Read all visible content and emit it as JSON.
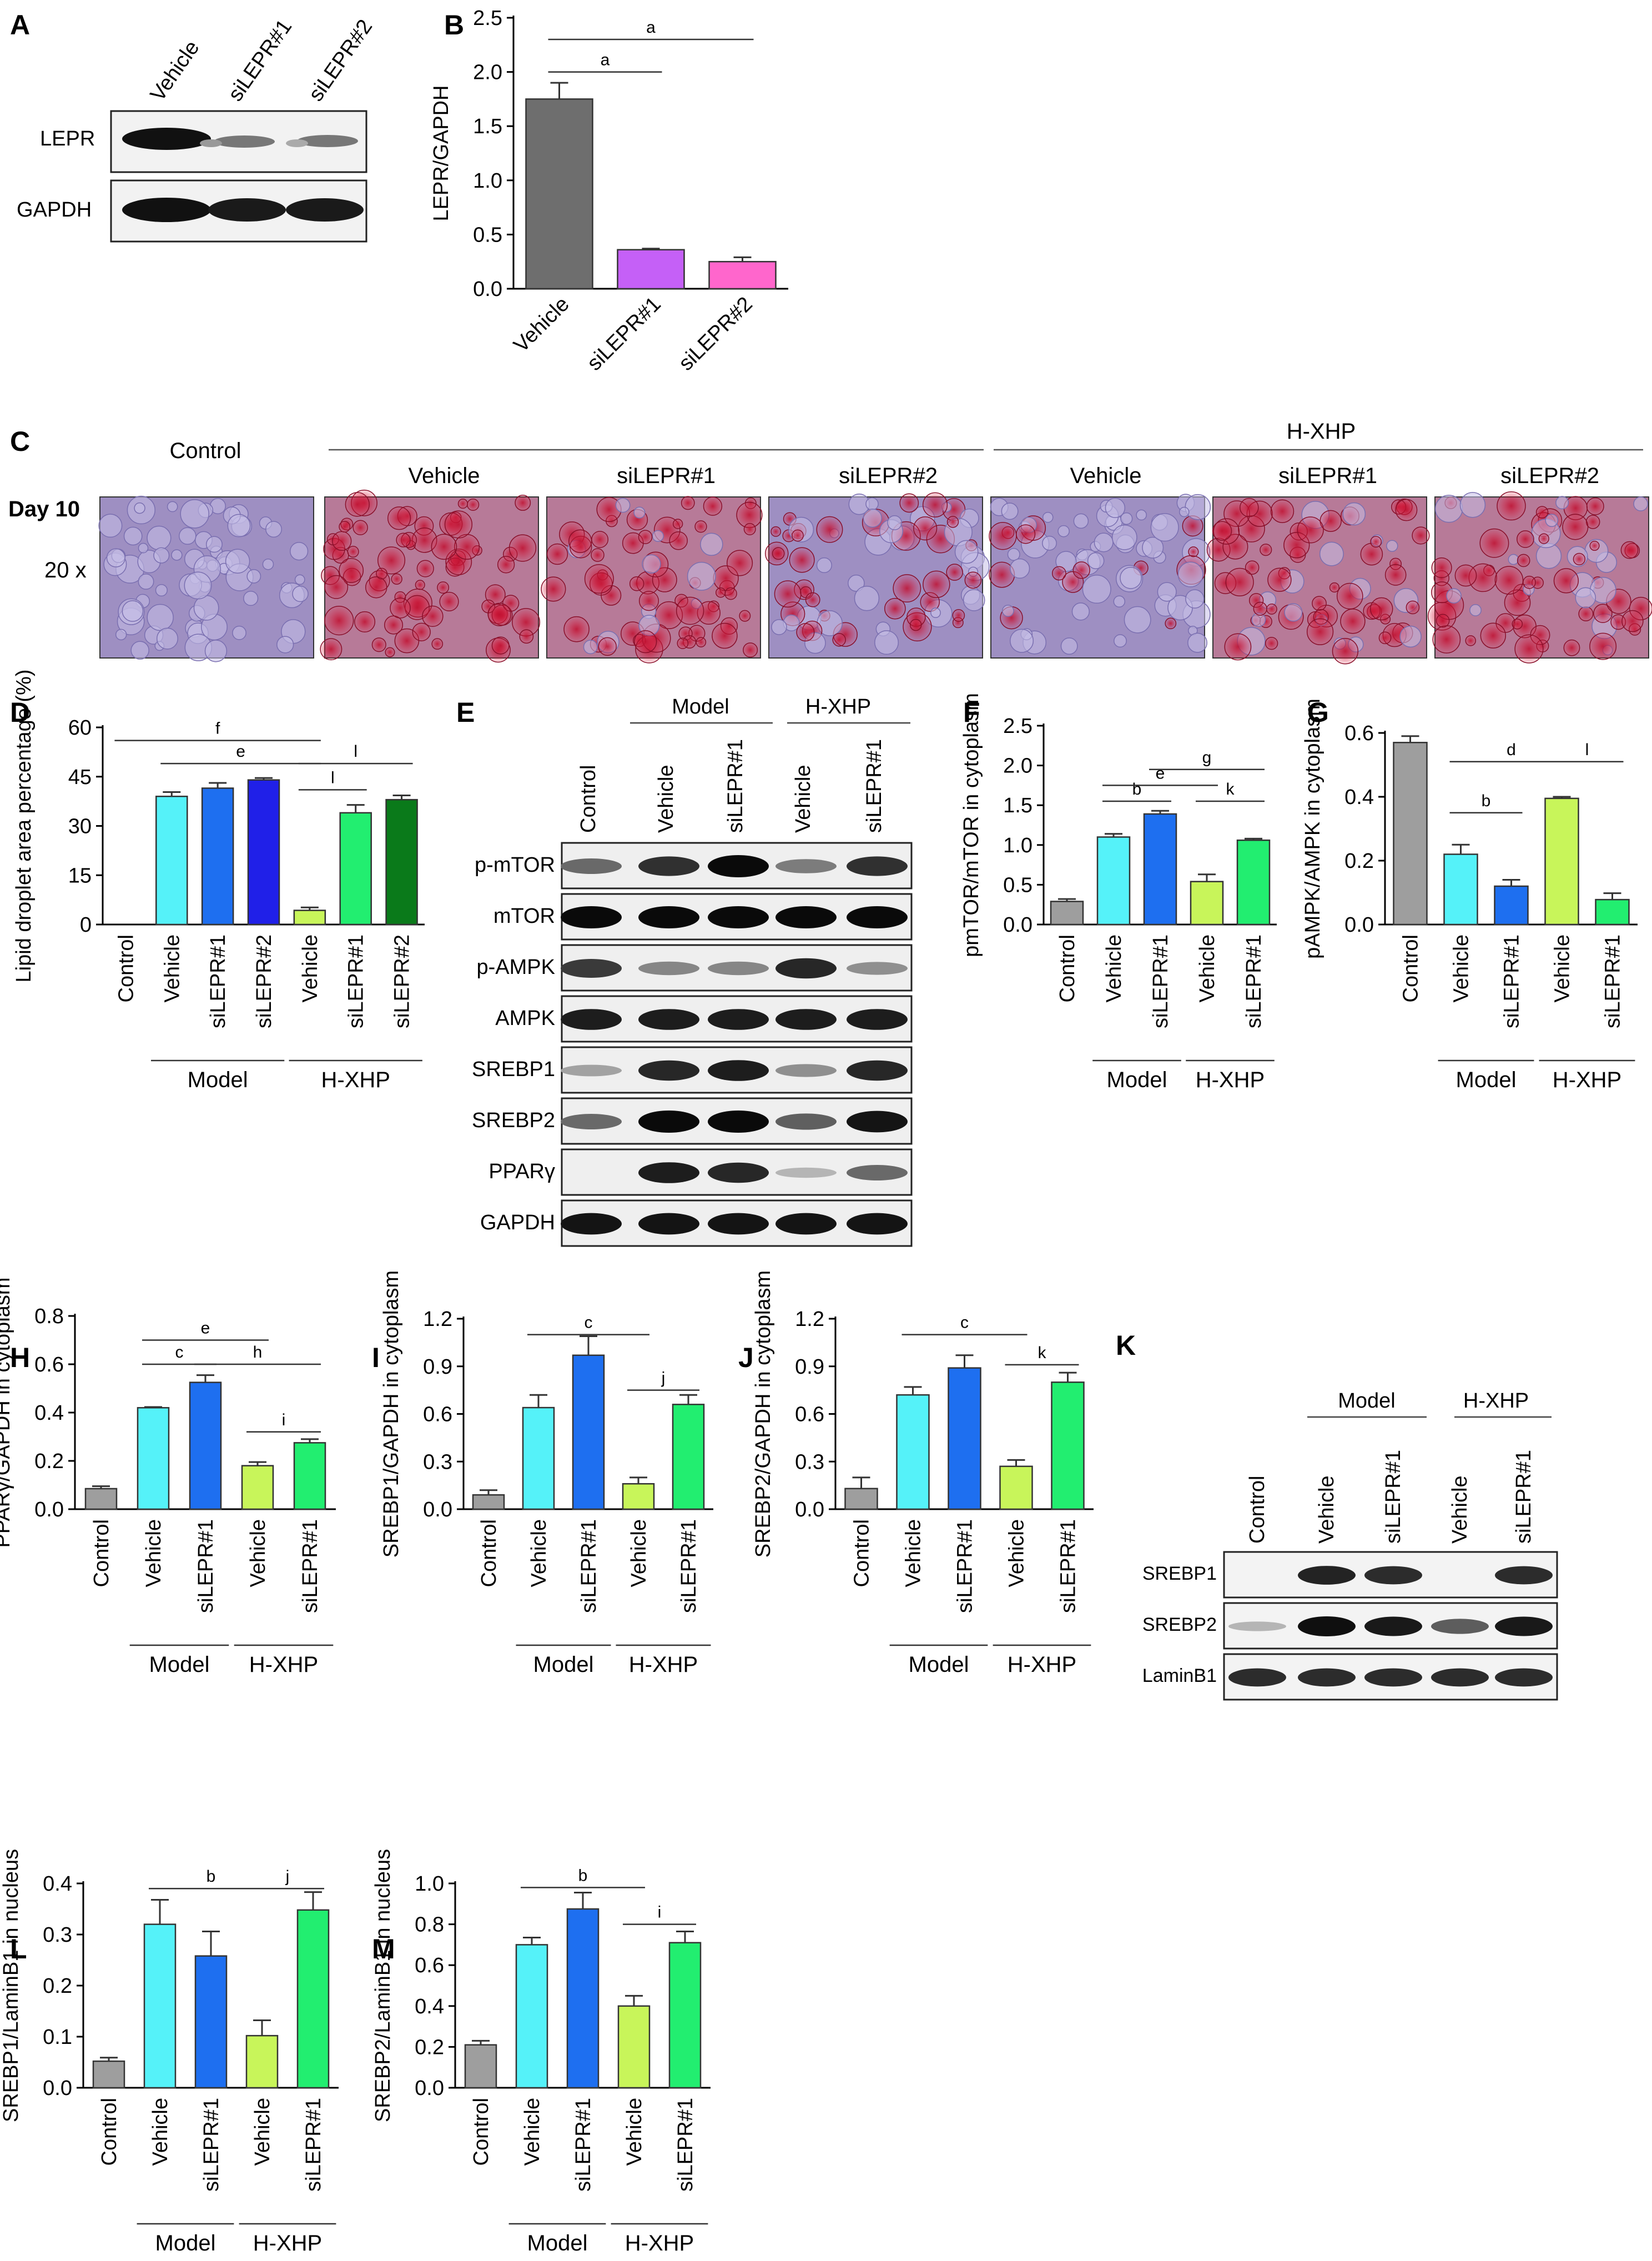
{
  "colors": {
    "control": "#9e9e9e",
    "vehicle": "#55f2f9",
    "si1": "#1e6ff0",
    "si1_b": "#c560f7",
    "si2": "#2020e8",
    "si2_b": "#ff66cc",
    "hxhp_vehicle": "#c8f55a",
    "hxhp_si1": "#22ee70",
    "hxhp_si2": "#0a7a1a",
    "model_b_vehicle": "#6e6e6e"
  },
  "panels": {
    "A": {
      "letter": "A",
      "lanes": [
        "Vehicle",
        "siLEPR#1",
        "siLEPR#2"
      ],
      "rows": [
        "LEPR",
        "GAPDH"
      ]
    },
    "C": {
      "letter": "C",
      "control": "Control",
      "group": "H-XHP",
      "cols": [
        "Vehicle",
        "siLEPR#1",
        "siLEPR#2",
        "Vehicle",
        "siLEPR#1",
        "siLEPR#2"
      ],
      "day": "Day 10",
      "mag": "20 x"
    },
    "E": {
      "letter": "E",
      "groups": [
        "Model",
        "H-XHP"
      ],
      "lanes": [
        "Control",
        "Vehicle",
        "siLEPR#1",
        "Vehicle",
        "siLEPR#1"
      ],
      "rows": [
        "p-mTOR",
        "mTOR",
        "p-AMPK",
        "AMPK",
        "SREBP1",
        "SREBP2",
        "PPARγ",
        "GAPDH"
      ]
    },
    "K": {
      "letter": "K",
      "groups": [
        "Model",
        "H-XHP"
      ],
      "lanes": [
        "Control",
        "Vehicle",
        "siLEPR#1",
        "Vehicle",
        "siLEPR#1"
      ],
      "rows": [
        "SREBP1",
        "SREBP2",
        "LaminB1"
      ]
    }
  },
  "chart_data": [
    {
      "id": "B",
      "letter": "B",
      "type": "bar",
      "categories": [
        "Vehicle",
        "siLEPR#1",
        "siLEPR#2"
      ],
      "values": [
        1.75,
        0.36,
        0.25
      ],
      "errors": [
        0.15,
        0.01,
        0.04
      ],
      "ylabel": "LEPR/GAPDH",
      "ylim": [
        0,
        2.5
      ],
      "yticks": [
        "0.0",
        "0.5",
        "1.0",
        "1.5",
        "2.0",
        "2.5"
      ],
      "sig": [
        {
          "from": 0,
          "to": 1,
          "label": "a",
          "y": 2.0
        },
        {
          "from": 0,
          "to": 2,
          "label": "a",
          "y": 2.3
        }
      ],
      "groups": []
    },
    {
      "id": "D",
      "letter": "D",
      "type": "bar",
      "categories": [
        "Control",
        "Vehicle",
        "siLEPR#1",
        "siLEPR#2",
        "Vehicle",
        "siLEPR#1",
        "siLEPR#2"
      ],
      "values": [
        0,
        39,
        41.5,
        44,
        4.3,
        34,
        38
      ],
      "errors": [
        0,
        1.3,
        1.6,
        0.6,
        0.9,
        2.4,
        1.3
      ],
      "ylabel": "Lipid droplet area percentage (%)",
      "ylim": [
        0,
        60
      ],
      "yticks": [
        "0",
        "15",
        "30",
        "45",
        "60"
      ],
      "sig": [
        {
          "from": 1,
          "to": 4,
          "label": "e",
          "y": 49
        },
        {
          "from": 0,
          "to": 4,
          "label": "f",
          "y": 56
        },
        {
          "from": 4,
          "to": 5,
          "label": "l",
          "y": 41
        },
        {
          "from": 4,
          "to": 6,
          "label": "l",
          "y": 49
        }
      ],
      "groups": [
        {
          "label": "Model",
          "from": 1,
          "to": 3
        },
        {
          "label": "H-XHP",
          "from": 4,
          "to": 6
        }
      ]
    },
    {
      "id": "F",
      "letter": "F",
      "type": "bar",
      "categories": [
        "Control",
        "Vehicle",
        "siLEPR#1",
        "Vehicle",
        "siLEPR#1"
      ],
      "values": [
        0.29,
        1.1,
        1.39,
        0.54,
        1.06
      ],
      "errors": [
        0.03,
        0.04,
        0.04,
        0.09,
        0.02
      ],
      "ylabel": "pmTOR/mTOR in cytoplasm",
      "ylim": [
        0,
        2.5
      ],
      "yticks": [
        "0.0",
        "0.5",
        "1.0",
        "1.5",
        "2.0",
        "2.5"
      ],
      "sig": [
        {
          "from": 1,
          "to": 2,
          "label": "b",
          "y": 1.55
        },
        {
          "from": 1,
          "to": 3,
          "label": "e",
          "y": 1.75
        },
        {
          "from": 2,
          "to": 4,
          "label": "g",
          "y": 1.95
        },
        {
          "from": 3,
          "to": 4,
          "label": "k",
          "y": 1.55
        }
      ],
      "groups": [
        {
          "label": "Model",
          "from": 1,
          "to": 2
        },
        {
          "label": "H-XHP",
          "from": 3,
          "to": 4
        }
      ]
    },
    {
      "id": "G",
      "letter": "G",
      "type": "bar",
      "categories": [
        "Control",
        "Vehicle",
        "siLEPR#1",
        "Vehicle",
        "siLEPR#1"
      ],
      "values": [
        0.57,
        0.22,
        0.12,
        0.395,
        0.078
      ],
      "errors": [
        0.02,
        0.03,
        0.02,
        0.005,
        0.02
      ],
      "ylabel": "pAMPK/AMPK in cytoplasm",
      "ylim": [
        0,
        0.6
      ],
      "yticks": [
        "0.0",
        "0.2",
        "0.4",
        "0.6"
      ],
      "sig": [
        {
          "from": 1,
          "to": 2,
          "label": "b",
          "y": 0.35
        },
        {
          "from": 1,
          "to": 3,
          "label": "d",
          "y": 0.51
        },
        {
          "from": 3,
          "to": 4,
          "label": "l",
          "y": 0.51
        }
      ],
      "groups": [
        {
          "label": "Model",
          "from": 1,
          "to": 2
        },
        {
          "label": "H-XHP",
          "from": 3,
          "to": 4
        }
      ]
    },
    {
      "id": "H",
      "letter": "H",
      "type": "bar",
      "categories": [
        "Control",
        "Vehicle",
        "siLEPR#1",
        "Vehicle",
        "siLEPR#1"
      ],
      "values": [
        0.085,
        0.42,
        0.525,
        0.18,
        0.275
      ],
      "errors": [
        0.01,
        0.003,
        0.03,
        0.015,
        0.015
      ],
      "ylabel": "PPARγ/GAPDH in cytoplasm",
      "ylim": [
        0,
        0.8
      ],
      "yticks": [
        "0.0",
        "0.2",
        "0.4",
        "0.6",
        "0.8"
      ],
      "sig": [
        {
          "from": 1,
          "to": 2,
          "label": "c",
          "y": 0.6
        },
        {
          "from": 1,
          "to": 3,
          "label": "e",
          "y": 0.7
        },
        {
          "from": 2,
          "to": 4,
          "label": "h",
          "y": 0.6
        },
        {
          "from": 3,
          "to": 4,
          "label": "i",
          "y": 0.32
        }
      ],
      "groups": [
        {
          "label": "Model",
          "from": 1,
          "to": 2
        },
        {
          "label": "H-XHP",
          "from": 3,
          "to": 4
        }
      ]
    },
    {
      "id": "I",
      "letter": "I",
      "type": "bar",
      "categories": [
        "Control",
        "Vehicle",
        "siLEPR#1",
        "Vehicle",
        "siLEPR#1"
      ],
      "values": [
        0.09,
        0.64,
        0.97,
        0.16,
        0.66
      ],
      "errors": [
        0.03,
        0.08,
        0.12,
        0.04,
        0.06
      ],
      "ylabel": "SREBP1/GAPDH in cytoplasm",
      "ylim": [
        0,
        1.2
      ],
      "yticks": [
        "0.0",
        "0.3",
        "0.6",
        "0.9",
        "1.2"
      ],
      "sig": [
        {
          "from": 1,
          "to": 3,
          "label": "c",
          "y": 1.1
        },
        {
          "from": 3,
          "to": 4,
          "label": "j",
          "y": 0.75
        }
      ],
      "groups": [
        {
          "label": "Model",
          "from": 1,
          "to": 2
        },
        {
          "label": "H-XHP",
          "from": 3,
          "to": 4
        }
      ]
    },
    {
      "id": "J",
      "letter": "J",
      "type": "bar",
      "categories": [
        "Control",
        "Vehicle",
        "siLEPR#1",
        "Vehicle",
        "siLEPR#1"
      ],
      "values": [
        0.13,
        0.72,
        0.89,
        0.27,
        0.8
      ],
      "errors": [
        0.07,
        0.05,
        0.08,
        0.04,
        0.06
      ],
      "ylabel": "SREBP2/GAPDH in cytoplasm",
      "ylim": [
        0,
        1.2
      ],
      "yticks": [
        "0.0",
        "0.3",
        "0.6",
        "0.9",
        "1.2"
      ],
      "sig": [
        {
          "from": 1,
          "to": 3,
          "label": "c",
          "y": 1.1
        },
        {
          "from": 3,
          "to": 4,
          "label": "k",
          "y": 0.91
        }
      ],
      "groups": [
        {
          "label": "Model",
          "from": 1,
          "to": 2
        },
        {
          "label": "H-XHP",
          "from": 3,
          "to": 4
        }
      ]
    },
    {
      "id": "L",
      "letter": "L",
      "type": "bar",
      "categories": [
        "Control",
        "Vehicle",
        "siLEPR#1",
        "Vehicle",
        "siLEPR#1"
      ],
      "values": [
        0.052,
        0.32,
        0.258,
        0.102,
        0.348
      ],
      "errors": [
        0.007,
        0.048,
        0.048,
        0.03,
        0.035
      ],
      "ylabel": "SREBP1/LaminB1 in nucleus",
      "ylim": [
        0,
        0.4
      ],
      "yticks": [
        "0.0",
        "0.1",
        "0.2",
        "0.3",
        "0.4"
      ],
      "sig": [
        {
          "from": 1,
          "to": 3,
          "label": "b",
          "y": 0.39
        },
        {
          "from": 3,
          "to": 4,
          "label": "j",
          "y": 0.39
        }
      ],
      "groups": [
        {
          "label": "Model",
          "from": 1,
          "to": 2
        },
        {
          "label": "H-XHP",
          "from": 3,
          "to": 4
        }
      ]
    },
    {
      "id": "M",
      "letter": "M",
      "type": "bar",
      "categories": [
        "Control",
        "Vehicle",
        "siLEPR#1",
        "Vehicle",
        "siLEPR#1"
      ],
      "values": [
        0.21,
        0.7,
        0.875,
        0.4,
        0.71
      ],
      "errors": [
        0.02,
        0.035,
        0.08,
        0.05,
        0.055
      ],
      "ylabel": "SREBP2/LaminB1 in nucleus",
      "ylim": [
        0,
        1.0
      ],
      "yticks": [
        "0.0",
        "0.2",
        "0.4",
        "0.6",
        "0.8",
        "1.0"
      ],
      "sig": [
        {
          "from": 1,
          "to": 3,
          "label": "b",
          "y": 0.98
        },
        {
          "from": 3,
          "to": 4,
          "label": "i",
          "y": 0.8
        }
      ],
      "groups": [
        {
          "label": "Model",
          "from": 1,
          "to": 2
        },
        {
          "label": "H-XHP",
          "from": 3,
          "to": 4
        }
      ]
    }
  ]
}
